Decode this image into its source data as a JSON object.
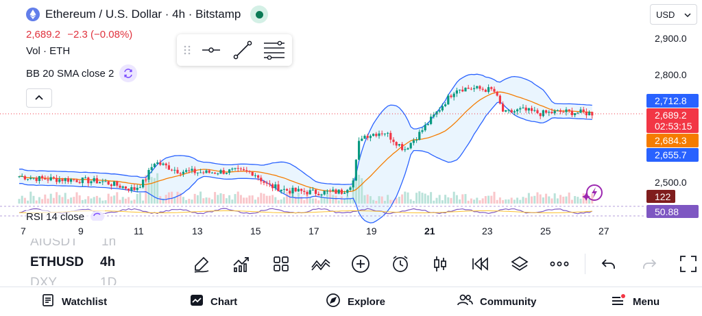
{
  "header": {
    "title": "Ethereum / U.S. Dollar · 4h · Bitstamp",
    "price": "2,689.2",
    "change": "−2.3 (−0.08%)",
    "volume_label": "Vol · ETH",
    "bb_label": "BB 20 SMA close 2",
    "rsi_label": "RSI 14 close"
  },
  "currency": {
    "selected": "USD"
  },
  "price_axis": {
    "ticks": [
      {
        "label": "2,900.0"
      },
      {
        "label": "2,800.0"
      },
      {
        "label": "2,500.0"
      }
    ],
    "tags": [
      {
        "label": "2,712.8",
        "color": "#2962ff",
        "name": "bb-upper-tag"
      },
      {
        "label": "2,689.2",
        "sub": "02:53:15",
        "color": "#f23645",
        "name": "last-price-tag"
      },
      {
        "label": "2,684.3",
        "color": "#f57c00",
        "name": "bb-basis-tag"
      },
      {
        "label": "2,655.7",
        "color": "#2962ff",
        "name": "bb-lower-tag"
      },
      {
        "label": "122",
        "color": "#7f1d1d",
        "name": "volume-tag"
      },
      {
        "label": "50.88",
        "color": "#7e57c2",
        "name": "rsi-tag"
      }
    ]
  },
  "time_axis": [
    "7",
    "9",
    "11",
    "13",
    "15",
    "17",
    "19",
    "21",
    "23",
    "25",
    "27"
  ],
  "symbols": {
    "above": "AIUSDT",
    "above_tf": "1h",
    "current": "ETHUSD",
    "current_tf": "4h",
    "below": "DXY",
    "below_tf": "1D"
  },
  "toolbar": {
    "buttons": [
      "draw-icon",
      "indicators-icon",
      "layout-icon",
      "compare-icon",
      "add-icon",
      "alert-icon",
      "bar-style-icon",
      "replay-icon",
      "layers-icon",
      "more-icon"
    ],
    "undo": "undo-icon",
    "redo": "redo-icon",
    "fullscreen": "fullscreen-icon"
  },
  "nav": {
    "watchlist": "Watchlist",
    "chart": "Chart",
    "explore": "Explore",
    "community": "Community",
    "menu": "Menu"
  },
  "colors": {
    "up": "#089981",
    "down": "#f23645",
    "bb_band": "#2962ff",
    "bb_basis": "#f57c00",
    "bb_fill": "#e3f2fd",
    "rsi": "#7e57c2"
  },
  "chart_data": {
    "type": "candlestick",
    "symbol": "ETHUSD",
    "interval": "4h",
    "y_ticks": [
      2500,
      2800,
      2900
    ],
    "last_price": 2689.2,
    "bb_upper_last": 2712.8,
    "bb_basis_last": 2684.3,
    "bb_lower_last": 2655.7,
    "volume_last": 122,
    "rsi_last": 50.88,
    "x_ticks": [
      "7",
      "9",
      "11",
      "13",
      "15",
      "17",
      "19",
      "21",
      "23",
      "25",
      "27"
    ]
  }
}
